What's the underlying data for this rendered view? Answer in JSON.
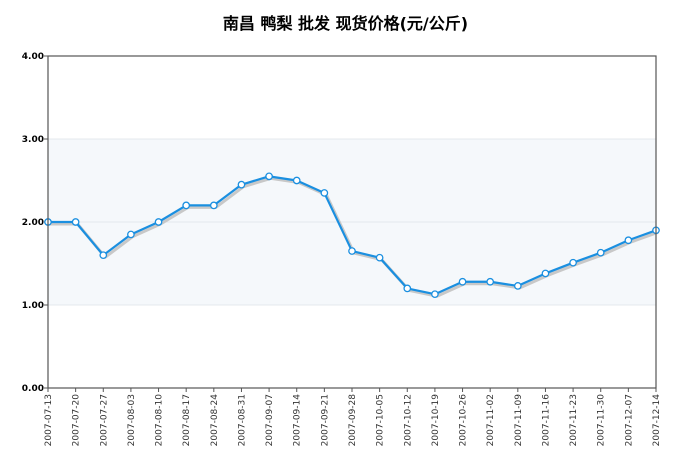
{
  "chart_data": {
    "type": "line",
    "title": "南昌 鸭梨 批发 现货价格(元/公斤)",
    "xlabel": "",
    "ylabel": "",
    "ylim": [
      0,
      4
    ],
    "yticks": [
      "0.00",
      "1.00",
      "2.00",
      "3.00",
      "4.00"
    ],
    "x": [
      "2007-07-13",
      "2007-07-20",
      "2007-07-27",
      "2007-08-03",
      "2007-08-10",
      "2007-08-17",
      "2007-08-24",
      "2007-08-31",
      "2007-09-07",
      "2007-09-14",
      "2007-09-21",
      "2007-09-28",
      "2007-10-05",
      "2007-10-12",
      "2007-10-19",
      "2007-10-26",
      "2007-11-02",
      "2007-11-09",
      "2007-11-16",
      "2007-11-23",
      "2007-11-30",
      "2007-12-07",
      "2007-12-14"
    ],
    "series": [
      {
        "values": [
          2.0,
          2.0,
          1.6,
          1.85,
          2.0,
          2.2,
          2.2,
          2.45,
          2.55,
          2.5,
          2.35,
          1.65,
          1.57,
          1.2,
          1.13,
          1.28,
          1.28,
          1.23,
          1.38,
          1.51,
          1.63,
          1.78,
          1.9
        ],
        "color": "#1a8fe0"
      }
    ],
    "grid": true,
    "legend": "none",
    "colors": {
      "line": "#1a8fe0",
      "shadow": "#c8c8c8",
      "marker_fill": "#ffffff",
      "band": "#f5f8fb",
      "axis": "#555555"
    }
  }
}
